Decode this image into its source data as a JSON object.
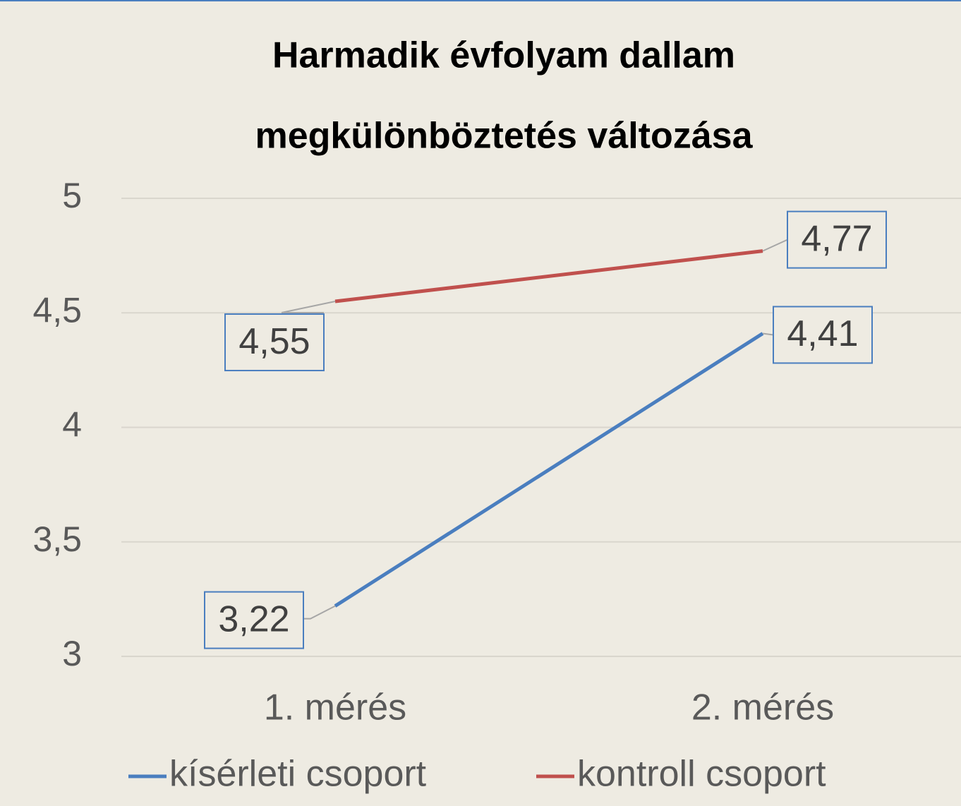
{
  "chart_data": {
    "type": "line",
    "title": [
      "Harmadik évfolyam dallam",
      "megkülönböztetés változása"
    ],
    "categories": [
      "1. mérés",
      "2. mérés"
    ],
    "series": [
      {
        "name": "kísérleti csoport",
        "color": "#4a7ebf",
        "values": [
          3.22,
          4.41
        ],
        "value_labels": [
          "3,22",
          "4,41"
        ]
      },
      {
        "name": "kontroll csoport",
        "color": "#c0504d",
        "values": [
          4.55,
          4.77
        ],
        "value_labels": [
          "4,55",
          "4,77"
        ]
      }
    ],
    "ylim": [
      3,
      5
    ],
    "yticks": [
      3,
      {
        "value": 3.5,
        "label": "3,5"
      },
      4,
      {
        "value": 4.5,
        "label": "4,5"
      },
      5
    ],
    "grid": true,
    "legend": "bottom"
  }
}
